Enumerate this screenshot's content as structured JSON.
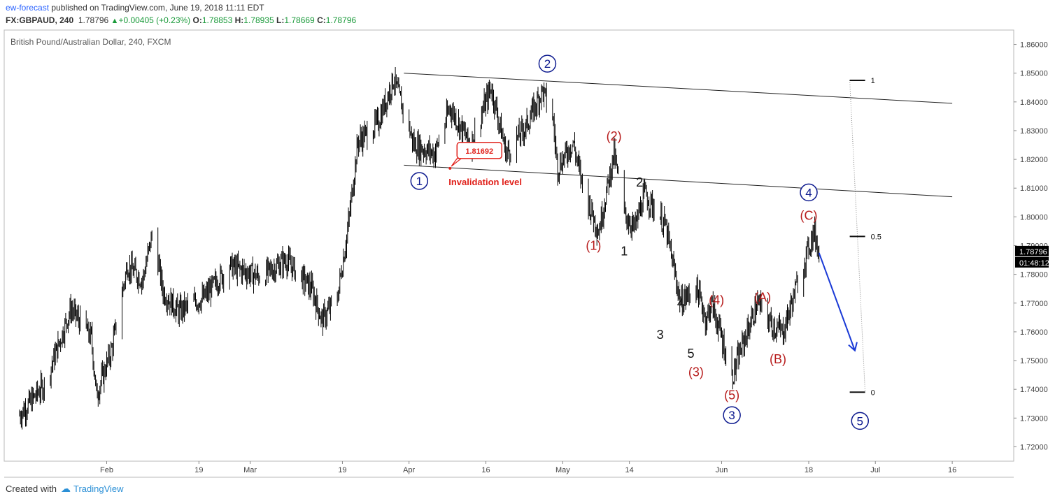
{
  "header": {
    "author": "ew-forecast",
    "published_text": "published on TradingView.com, June 19, 2018 11:11 EDT",
    "symbol": "FX:GBPAUD, 240",
    "last": "1.78796",
    "change": "+0.00405 (+0.23%)",
    "o_label": "O:",
    "o_value": "1.78853",
    "h_label": "H:",
    "h_value": "1.78935",
    "l_label": "L:",
    "l_value": "1.78669",
    "c_label": "C:",
    "c_value": "1.78796"
  },
  "footer": {
    "created_with": "Created with",
    "brand": "TradingView"
  },
  "colors": {
    "candle": "#000000",
    "wave_primary": "#0d1a8f",
    "wave_red": "#b71c1c",
    "wave_black": "#111111",
    "arrow": "#1a3ad6",
    "price_tag": "#000000",
    "invalidation": "#e0201a"
  },
  "chart_data": {
    "type": "candlestick",
    "title": "British Pound/Australian Dollar, 240, FXCM",
    "ylim": [
      1.715,
      1.865
    ],
    "y_ticks": [
      "1.86000",
      "1.85000",
      "1.84000",
      "1.83000",
      "1.82000",
      "1.81000",
      "1.80000",
      "1.79000",
      "1.78000",
      "1.77000",
      "1.76000",
      "1.75000",
      "1.74000",
      "1.73000",
      "1.72000"
    ],
    "x_ticks": [
      {
        "label": "Feb",
        "date": "2018-02-01"
      },
      {
        "label": "19",
        "date": "2018-02-19"
      },
      {
        "label": "Mar",
        "date": "2018-03-01"
      },
      {
        "label": "19",
        "date": "2018-03-19"
      },
      {
        "label": "Apr",
        "date": "2018-04-01"
      },
      {
        "label": "16",
        "date": "2018-04-16"
      },
      {
        "label": "May",
        "date": "2018-05-01"
      },
      {
        "label": "14",
        "date": "2018-05-14"
      },
      {
        "label": "Jun",
        "date": "2018-06-01"
      },
      {
        "label": "18",
        "date": "2018-06-18"
      },
      {
        "label": "Jul",
        "date": "2018-07-01"
      },
      {
        "label": "16",
        "date": "2018-07-16"
      }
    ],
    "last_price": "1.78796",
    "countdown": "01:48:12",
    "price_path": [
      {
        "date": "2018-01-15",
        "price": 1.731
      },
      {
        "date": "2018-01-20",
        "price": 1.742
      },
      {
        "date": "2018-01-25",
        "price": 1.768
      },
      {
        "date": "2018-01-29",
        "price": 1.758
      },
      {
        "date": "2018-01-30",
        "price": 1.738
      },
      {
        "date": "2018-02-02",
        "price": 1.754
      },
      {
        "date": "2018-02-05",
        "price": 1.783
      },
      {
        "date": "2018-02-08",
        "price": 1.778
      },
      {
        "date": "2018-02-10",
        "price": 1.795
      },
      {
        "date": "2018-02-12",
        "price": 1.774
      },
      {
        "date": "2018-02-15",
        "price": 1.767
      },
      {
        "date": "2018-02-20",
        "price": 1.772
      },
      {
        "date": "2018-02-25",
        "price": 1.783
      },
      {
        "date": "2018-03-03",
        "price": 1.779
      },
      {
        "date": "2018-03-08",
        "price": 1.785
      },
      {
        "date": "2018-03-13",
        "price": 1.775
      },
      {
        "date": "2018-03-15",
        "price": 1.764
      },
      {
        "date": "2018-03-18",
        "price": 1.772
      },
      {
        "date": "2018-03-20",
        "price": 1.795
      },
      {
        "date": "2018-03-22",
        "price": 1.826
      },
      {
        "date": "2018-03-26",
        "price": 1.833
      },
      {
        "date": "2018-03-29",
        "price": 1.848
      },
      {
        "date": "2018-04-02",
        "price": 1.825
      },
      {
        "date": "2018-04-06",
        "price": 1.822
      },
      {
        "date": "2018-04-09",
        "price": 1.838
      },
      {
        "date": "2018-04-13",
        "price": 1.825
      },
      {
        "date": "2018-04-17",
        "price": 1.845
      },
      {
        "date": "2018-04-20",
        "price": 1.822
      },
      {
        "date": "2018-04-24",
        "price": 1.832
      },
      {
        "date": "2018-04-27",
        "price": 1.844
      },
      {
        "date": "2018-04-29",
        "price": 1.835
      },
      {
        "date": "2018-04-30",
        "price": 1.817
      },
      {
        "date": "2018-05-03",
        "price": 1.826
      },
      {
        "date": "2018-05-05",
        "price": 1.81
      },
      {
        "date": "2018-05-08",
        "price": 1.795
      },
      {
        "date": "2018-05-11",
        "price": 1.822
      },
      {
        "date": "2018-05-13",
        "price": 1.801
      },
      {
        "date": "2018-05-15",
        "price": 1.796
      },
      {
        "date": "2018-05-17",
        "price": 1.808
      },
      {
        "date": "2018-05-21",
        "price": 1.797
      },
      {
        "date": "2018-05-24",
        "price": 1.77
      },
      {
        "date": "2018-05-27",
        "price": 1.776
      },
      {
        "date": "2018-05-29",
        "price": 1.764
      },
      {
        "date": "2018-05-30",
        "price": 1.77
      },
      {
        "date": "2018-06-01",
        "price": 1.758
      },
      {
        "date": "2018-06-03",
        "price": 1.744
      },
      {
        "date": "2018-06-05",
        "price": 1.755
      },
      {
        "date": "2018-06-08",
        "price": 1.77
      },
      {
        "date": "2018-06-11",
        "price": 1.762
      },
      {
        "date": "2018-06-13",
        "price": 1.76
      },
      {
        "date": "2018-06-16",
        "price": 1.778
      },
      {
        "date": "2018-06-19",
        "price": 1.795
      },
      {
        "date": "2018-06-20",
        "price": 1.788
      }
    ],
    "channel_lines": [
      {
        "from": {
          "date": "2018-03-31",
          "price": 1.85
        },
        "to": {
          "date": "2018-07-16",
          "price": 1.8395
        }
      },
      {
        "from": {
          "date": "2018-03-31",
          "price": 1.818
        },
        "to": {
          "date": "2018-07-16",
          "price": 1.807
        }
      }
    ],
    "fib_levels": [
      {
        "label": "1",
        "price": 1.8475
      },
      {
        "label": "0.5",
        "price": 1.7932
      },
      {
        "label": "0",
        "price": 1.739
      }
    ],
    "invalidation": {
      "value": "1.81692",
      "text": "Invalidation level",
      "date": "2018-04-09",
      "price": 1.8169
    },
    "wave_labels": [
      {
        "text": "1",
        "style": "circle",
        "date": "2018-04-03",
        "price": 1.8125
      },
      {
        "text": "2",
        "style": "circle",
        "date": "2018-04-28",
        "price": 1.8533
      },
      {
        "text": "3",
        "style": "circle",
        "date": "2018-06-03",
        "price": 1.731
      },
      {
        "text": "4",
        "style": "circle",
        "date": "2018-06-18",
        "price": 1.8085
      },
      {
        "text": "5",
        "style": "circle",
        "date": "2018-06-28",
        "price": 1.729
      },
      {
        "text": "(1)",
        "style": "red",
        "date": "2018-05-07",
        "price": 1.79
      },
      {
        "text": "(2)",
        "style": "red",
        "date": "2018-05-11",
        "price": 1.828
      },
      {
        "text": "(3)",
        "style": "red",
        "date": "2018-05-27",
        "price": 1.746
      },
      {
        "text": "(4)",
        "style": "red",
        "date": "2018-05-31",
        "price": 1.771
      },
      {
        "text": "(5)",
        "style": "red",
        "date": "2018-06-03",
        "price": 1.738
      },
      {
        "text": "(A)",
        "style": "red",
        "date": "2018-06-09",
        "price": 1.772
      },
      {
        "text": "(B)",
        "style": "red",
        "date": "2018-06-12",
        "price": 1.7505
      },
      {
        "text": "(C)",
        "style": "red",
        "date": "2018-06-18",
        "price": 1.8005
      },
      {
        "text": "1",
        "style": "black",
        "date": "2018-05-13",
        "price": 1.788
      },
      {
        "text": "2",
        "style": "black",
        "date": "2018-05-16",
        "price": 1.812
      },
      {
        "text": "3",
        "style": "black",
        "date": "2018-05-20",
        "price": 1.759
      },
      {
        "text": "4",
        "style": "black",
        "date": "2018-05-24",
        "price": 1.77
      },
      {
        "text": "5",
        "style": "black",
        "date": "2018-05-26",
        "price": 1.7525
      }
    ]
  }
}
